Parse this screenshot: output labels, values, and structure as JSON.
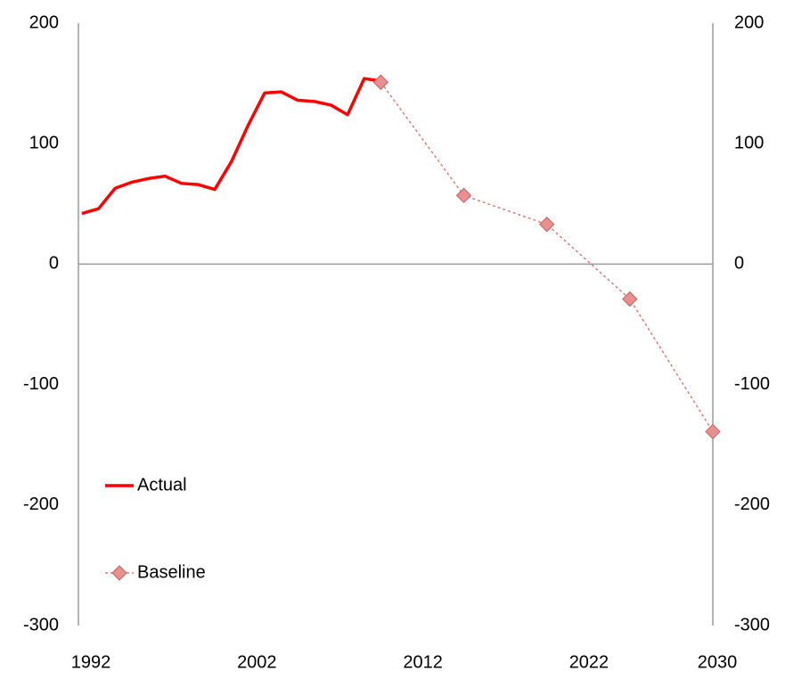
{
  "chart_data": {
    "type": "line",
    "x": [
      1992,
      1993,
      1994,
      1995,
      1996,
      1997,
      1998,
      1999,
      2000,
      2001,
      2002,
      2003,
      2004,
      2005,
      2006,
      2007,
      2008,
      2009,
      2010,
      2015,
      2020,
      2025,
      2030
    ],
    "series": [
      {
        "name": "Actual",
        "color": "#ff0000",
        "values": [
          42,
          46,
          63,
          68,
          71,
          73,
          67,
          66,
          62,
          85,
          115,
          142,
          143,
          136,
          135,
          132,
          124,
          154,
          152,
          null,
          null,
          null,
          null
        ]
      },
      {
        "name": "Baseline",
        "color": "#e07a7a",
        "marker": "diamond",
        "values": [
          null,
          null,
          null,
          null,
          null,
          null,
          null,
          null,
          null,
          null,
          null,
          null,
          null,
          null,
          null,
          null,
          null,
          null,
          151,
          57,
          33,
          -29,
          -139
        ]
      }
    ],
    "xlim": [
      1992,
      2030
    ],
    "xticks": [
      1992,
      2002,
      2012,
      2022,
      2030
    ],
    "ylim": [
      -300,
      200
    ],
    "yticks": [
      -300,
      -200,
      -100,
      0,
      100,
      200
    ],
    "y2lim": [
      -300,
      200
    ],
    "y2ticks": [
      -300,
      -200,
      -100,
      0,
      100,
      200
    ],
    "legend": "lower left"
  }
}
